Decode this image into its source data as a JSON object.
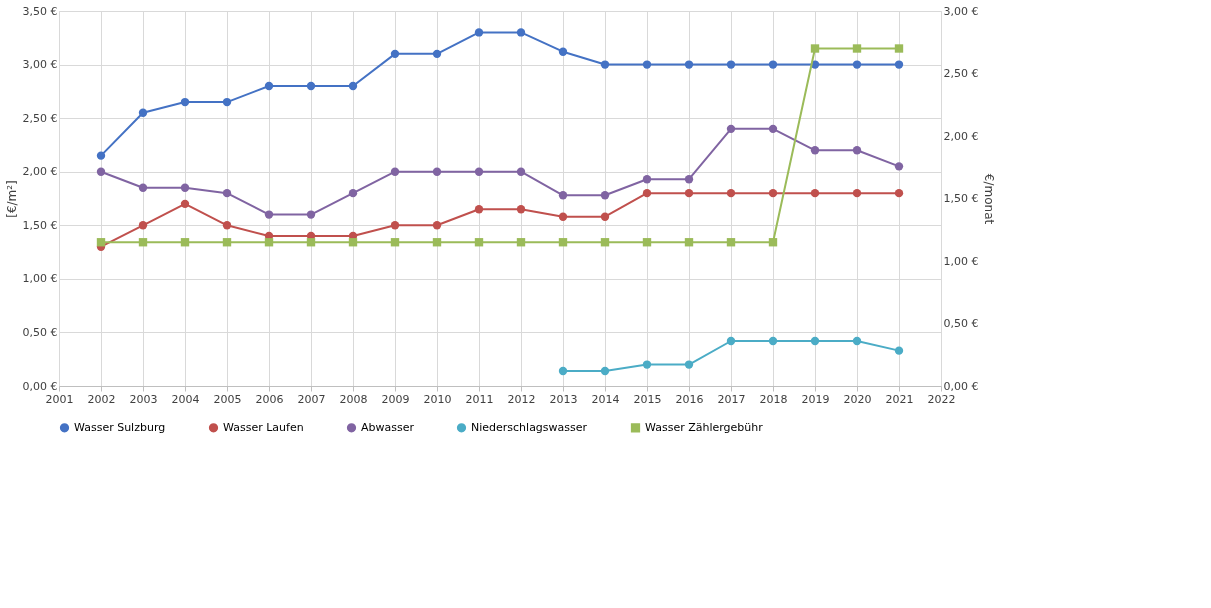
{
  "chart_data": {
    "type": "line",
    "ylabel": "[€/m²]",
    "y2label": "€/monat",
    "x": [
      2002,
      2003,
      2004,
      2005,
      2006,
      2007,
      2008,
      2009,
      2010,
      2011,
      2012,
      2013,
      2014,
      2015,
      2016,
      2017,
      2018,
      2019,
      2020,
      2021
    ],
    "xlim": [
      2001,
      2022
    ],
    "xticks": [
      2001,
      2002,
      2003,
      2004,
      2005,
      2006,
      2007,
      2008,
      2009,
      2010,
      2011,
      2012,
      2013,
      2014,
      2015,
      2016,
      2017,
      2018,
      2019,
      2020,
      2021,
      2022
    ],
    "ylim": [
      0,
      3.5
    ],
    "yticks": [
      {
        "value": 0,
        "label": "0,00 €"
      },
      {
        "value": 0.5,
        "label": "0,50 €"
      },
      {
        "value": 1,
        "label": "1,00 €"
      },
      {
        "value": 1.5,
        "label": "1,50 €"
      },
      {
        "value": 2,
        "label": "2,00 €"
      },
      {
        "value": 2.5,
        "label": "2,50 €"
      },
      {
        "value": 3,
        "label": "3,00 €"
      },
      {
        "value": 3.5,
        "label": "3,50 €"
      }
    ],
    "y2lim": [
      0,
      3
    ],
    "y2ticks": [
      {
        "value": 0,
        "label": "0,00 €"
      },
      {
        "value": 0.5,
        "label": "0,50 €"
      },
      {
        "value": 1,
        "label": "1,00 €"
      },
      {
        "value": 1.5,
        "label": "1,50 €"
      },
      {
        "value": 2,
        "label": "2,00 €"
      },
      {
        "value": 2.5,
        "label": "2,50 €"
      },
      {
        "value": 3,
        "label": "3,00 €"
      }
    ],
    "grid": true,
    "legend": "bottom",
    "line_style": "solid",
    "series": [
      {
        "name": "Wasser Sulzburg",
        "color": "#4472c4",
        "marker": "circle",
        "values": [
          2.15,
          2.55,
          2.65,
          2.65,
          2.8,
          2.8,
          2.8,
          3.1,
          3.1,
          3.3,
          3.3,
          3.12,
          3.0,
          3.0,
          3.0,
          3.0,
          3.0,
          3.0,
          3.0,
          3.0
        ]
      },
      {
        "name": "Wasser Laufen",
        "color": "#c0504d",
        "marker": "circle",
        "values": [
          1.3,
          1.5,
          1.7,
          1.5,
          1.4,
          1.4,
          1.4,
          1.5,
          1.5,
          1.65,
          1.65,
          1.58,
          1.58,
          1.8,
          1.8,
          1.8,
          1.8,
          1.8,
          1.8,
          1.8
        ]
      },
      {
        "name": "Abwasser",
        "color": "#8064a2",
        "marker": "circle",
        "values": [
          2.0,
          1.85,
          1.85,
          1.8,
          1.6,
          1.6,
          1.8,
          2.0,
          2.0,
          2.0,
          2.0,
          1.78,
          1.78,
          1.93,
          1.93,
          2.4,
          2.4,
          2.2,
          2.2,
          2.05
        ]
      },
      {
        "name": "Niederschlagswasser",
        "color": "#4bacc6",
        "marker": "circle",
        "values": [
          null,
          null,
          null,
          null,
          null,
          null,
          null,
          null,
          null,
          null,
          null,
          0.14,
          0.14,
          0.2,
          0.2,
          0.42,
          0.42,
          0.42,
          0.42,
          0.33
        ]
      },
      {
        "name": "Wasser Zählergebühr",
        "color": "#9bbb59",
        "marker": "square",
        "axis": "y2",
        "values": [
          1.15,
          1.15,
          1.15,
          1.15,
          1.15,
          1.15,
          1.15,
          1.15,
          1.15,
          1.15,
          1.15,
          1.15,
          1.15,
          1.15,
          1.15,
          1.15,
          1.15,
          2.7,
          2.7,
          2.7
        ]
      }
    ]
  }
}
